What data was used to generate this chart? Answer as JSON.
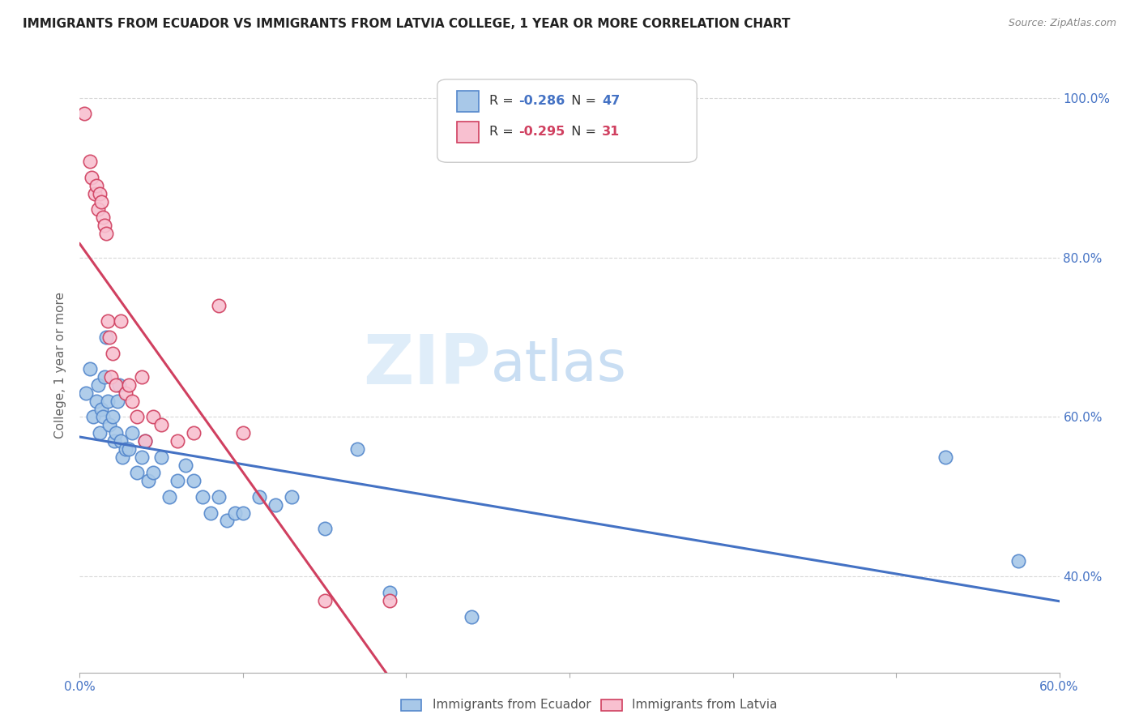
{
  "title": "IMMIGRANTS FROM ECUADOR VS IMMIGRANTS FROM LATVIA COLLEGE, 1 YEAR OR MORE CORRELATION CHART",
  "source": "Source: ZipAtlas.com",
  "ylabel": "College, 1 year or more",
  "legend_ecuador": "Immigrants from Ecuador",
  "legend_latvia": "Immigrants from Latvia",
  "xlim": [
    0.0,
    0.6
  ],
  "ylim": [
    0.28,
    1.05
  ],
  "xticks": [
    0.0,
    0.1,
    0.2,
    0.3,
    0.4,
    0.5,
    0.6
  ],
  "yticks": [
    0.4,
    0.6,
    0.8,
    1.0
  ],
  "ytick_labels_right": [
    "40.0%",
    "60.0%",
    "80.0%",
    "100.0%"
  ],
  "xtick_labels": [
    "0.0%",
    "",
    "",
    "",
    "",
    "",
    "60.0%"
  ],
  "R_ecuador": -0.286,
  "N_ecuador": 47,
  "R_latvia": -0.295,
  "N_latvia": 31,
  "color_ecuador": "#a8c8e8",
  "color_ecuador_line": "#4472c4",
  "color_ecuador_edge": "#5588cc",
  "color_latvia": "#f8c0d0",
  "color_latvia_line": "#d04060",
  "color_latvia_edge": "#d04060",
  "ecuador_x": [
    0.004,
    0.006,
    0.008,
    0.01,
    0.011,
    0.012,
    0.013,
    0.014,
    0.015,
    0.016,
    0.017,
    0.018,
    0.02,
    0.021,
    0.022,
    0.023,
    0.024,
    0.025,
    0.026,
    0.028,
    0.03,
    0.032,
    0.035,
    0.038,
    0.04,
    0.042,
    0.045,
    0.05,
    0.055,
    0.06,
    0.065,
    0.07,
    0.075,
    0.08,
    0.085,
    0.09,
    0.095,
    0.1,
    0.11,
    0.12,
    0.13,
    0.15,
    0.17,
    0.19,
    0.24,
    0.53,
    0.575
  ],
  "ecuador_y": [
    0.63,
    0.66,
    0.6,
    0.62,
    0.64,
    0.58,
    0.61,
    0.6,
    0.65,
    0.7,
    0.62,
    0.59,
    0.6,
    0.57,
    0.58,
    0.62,
    0.64,
    0.57,
    0.55,
    0.56,
    0.56,
    0.58,
    0.53,
    0.55,
    0.57,
    0.52,
    0.53,
    0.55,
    0.5,
    0.52,
    0.54,
    0.52,
    0.5,
    0.48,
    0.5,
    0.47,
    0.48,
    0.48,
    0.5,
    0.49,
    0.5,
    0.46,
    0.56,
    0.38,
    0.35,
    0.55,
    0.42
  ],
  "latvia_x": [
    0.003,
    0.006,
    0.007,
    0.009,
    0.01,
    0.011,
    0.012,
    0.013,
    0.014,
    0.015,
    0.016,
    0.017,
    0.018,
    0.019,
    0.02,
    0.022,
    0.025,
    0.028,
    0.03,
    0.032,
    0.035,
    0.038,
    0.04,
    0.045,
    0.05,
    0.06,
    0.07,
    0.085,
    0.1,
    0.15,
    0.19
  ],
  "latvia_y": [
    0.98,
    0.92,
    0.9,
    0.88,
    0.89,
    0.86,
    0.88,
    0.87,
    0.85,
    0.84,
    0.83,
    0.72,
    0.7,
    0.65,
    0.68,
    0.64,
    0.72,
    0.63,
    0.64,
    0.62,
    0.6,
    0.65,
    0.57,
    0.6,
    0.59,
    0.57,
    0.58,
    0.74,
    0.58,
    0.37,
    0.37
  ],
  "watermark_zip": "ZIP",
  "watermark_atlas": "atlas",
  "background_color": "#ffffff",
  "grid_color": "#d8d8d8",
  "latvia_line_solid_end": 0.21,
  "latvia_line_dashed_end": 0.45
}
